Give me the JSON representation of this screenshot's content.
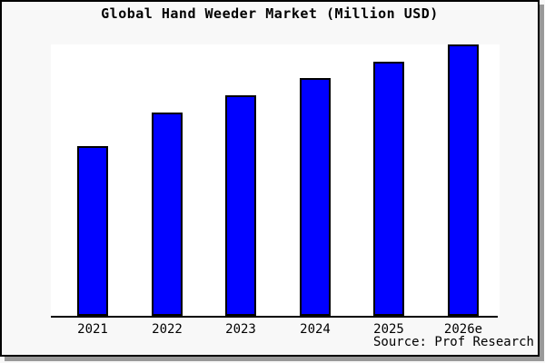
{
  "chart_data": {
    "type": "bar",
    "title": "Global Hand Weeder Market (Million USD)",
    "categories": [
      "2021",
      "2022",
      "2023",
      "2024",
      "2025",
      "2026e"
    ],
    "values": [
      100,
      120,
      130,
      140,
      150,
      160
    ],
    "values_note": "y-axis has no scale or tick labels; values are relative estimates read from bar heights with 2021 normalized to 100 (ratios 1.0 : 1.2 : 1.3 : 1.4 : 1.5 : 1.6)",
    "xlabel": "",
    "ylabel": "",
    "ylim": [
      0,
      160
    ],
    "grid": false,
    "legend": null,
    "source": "Source: Prof Research",
    "colors": {
      "bar_fill": "#0000FF",
      "bar_edge": "#000000",
      "axis": "#000000",
      "page_background": "#F8F8F8",
      "plot_background": "#FFFFFF",
      "frame_border": "#000000",
      "frame_shadow": "#999999",
      "text": "#000000"
    }
  }
}
